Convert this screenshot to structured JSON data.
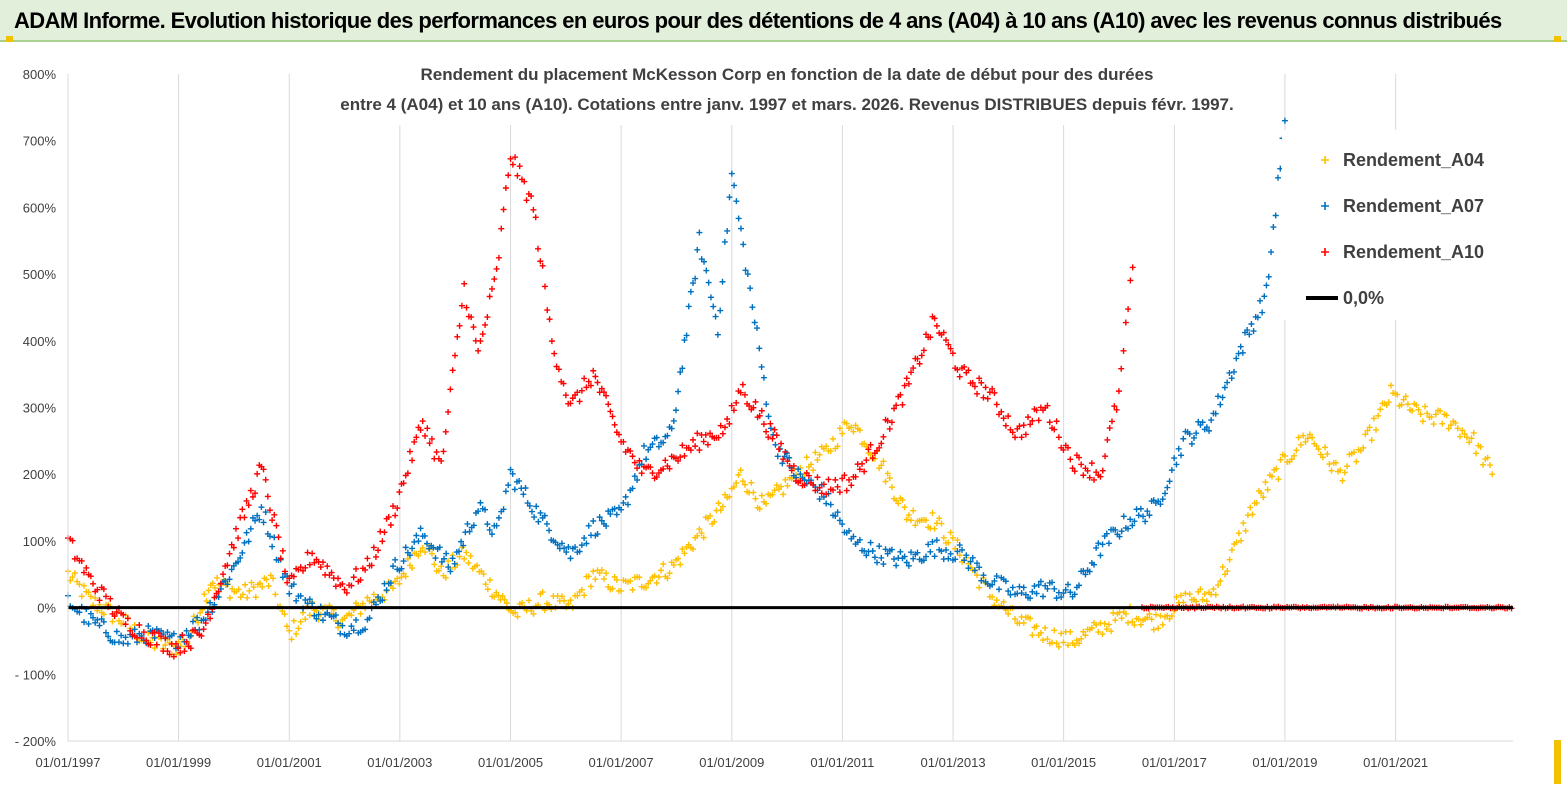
{
  "banner": {
    "title": "ADAM Informe. Evolution historique des performances en euros pour des détentions de 4 ans (A04) à 10 ans (A10) avec les revenus connus distribués"
  },
  "chart_data": {
    "type": "scatter",
    "title_lines": [
      "Rendement du placement McKesson Corp en fonction de la date de début pour des durées",
      "entre 4 (A04) et 10 ans (A10). Cotations entre janv. 1997 et mars. 2026. Revenus DISTRIBUES depuis févr. 1997."
    ],
    "x_axis": {
      "type": "date",
      "range": [
        "1997-01-01",
        "2023-02-15"
      ],
      "tick_labels": [
        "01/01/1997",
        "01/01/1999",
        "01/01/2001",
        "01/01/2003",
        "01/01/2005",
        "01/01/2007",
        "01/01/2009",
        "01/01/2011",
        "01/01/2013",
        "01/01/2015",
        "01/01/2017",
        "01/01/2019",
        "01/01/2021"
      ]
    },
    "y_axis": {
      "range": [
        -200,
        800
      ],
      "tick_values": [
        -200,
        -100,
        0,
        100,
        200,
        300,
        400,
        500,
        600,
        700,
        800
      ],
      "tick_labels": [
        "- 200%",
        "- 100%",
        "0%",
        "100%",
        "200%",
        "300%",
        "400%",
        "500%",
        "600%",
        "700%",
        "800%"
      ]
    },
    "grid": {
      "vertical": true,
      "horizontal": false
    },
    "legend_position": "top-right",
    "legend": [
      {
        "label": "Rendement_A04",
        "marker": "+",
        "color": "#ffc000"
      },
      {
        "label": "Rendement_A07",
        "marker": "+",
        "color": "#0070c0"
      },
      {
        "label": "Rendement_A10",
        "marker": "+",
        "color": "#ff0000"
      },
      {
        "label": "0,0%",
        "marker": "line",
        "color": "#000000"
      }
    ],
    "series": [
      {
        "name": "Rendement_A04",
        "color": "#ffc000",
        "points": [
          [
            "1997-01-01",
            50
          ],
          [
            "1997-06-01",
            10
          ],
          [
            "1998-01-01",
            -20
          ],
          [
            "1998-06-01",
            -50
          ],
          [
            "1998-12-01",
            -60
          ],
          [
            "1999-03-01",
            -50
          ],
          [
            "1999-08-01",
            40
          ],
          [
            "2000-03-01",
            20
          ],
          [
            "2000-09-01",
            40
          ],
          [
            "2001-01-01",
            -40
          ],
          [
            "2001-06-01",
            0
          ],
          [
            "2002-01-01",
            -20
          ],
          [
            "2002-06-01",
            10
          ],
          [
            "2002-12-01",
            30
          ],
          [
            "2003-06-01",
            100
          ],
          [
            "2003-10-01",
            50
          ],
          [
            "2004-03-01",
            80
          ],
          [
            "2004-09-01",
            30
          ],
          [
            "2005-02-01",
            -10
          ],
          [
            "2005-08-01",
            10
          ],
          [
            "2006-02-01",
            0
          ],
          [
            "2006-07-01",
            50
          ],
          [
            "2007-01-01",
            30
          ],
          [
            "2007-06-01",
            40
          ],
          [
            "2007-12-01",
            60
          ],
          [
            "2008-06-01",
            110
          ],
          [
            "2008-12-01",
            160
          ],
          [
            "2009-03-01",
            200
          ],
          [
            "2009-08-01",
            150
          ],
          [
            "2010-03-01",
            200
          ],
          [
            "2010-09-01",
            230
          ],
          [
            "2011-03-01",
            280
          ],
          [
            "2011-09-01",
            220
          ],
          [
            "2012-03-01",
            140
          ],
          [
            "2012-09-01",
            130
          ],
          [
            "2013-03-01",
            80
          ],
          [
            "2013-09-01",
            20
          ],
          [
            "2014-03-01",
            -20
          ],
          [
            "2014-09-01",
            -40
          ],
          [
            "2015-03-01",
            -50
          ],
          [
            "2015-09-01",
            -30
          ],
          [
            "2016-03-01",
            -10
          ],
          [
            "2016-09-01",
            -20
          ],
          [
            "2017-03-01",
            10
          ],
          [
            "2017-09-01",
            20
          ],
          [
            "2018-01-01",
            70
          ],
          [
            "2018-06-01",
            150
          ],
          [
            "2019-01-01",
            220
          ],
          [
            "2019-06-01",
            260
          ],
          [
            "2020-01-01",
            200
          ],
          [
            "2020-06-01",
            240
          ],
          [
            "2020-12-01",
            320
          ],
          [
            "2021-06-01",
            290
          ],
          [
            "2022-01-01",
            280
          ],
          [
            "2022-06-01",
            250
          ],
          [
            "2022-10-01",
            200
          ]
        ]
      },
      {
        "name": "Rendement_A07",
        "color": "#0070c0",
        "points": [
          [
            "1997-01-01",
            10
          ],
          [
            "1997-06-01",
            -20
          ],
          [
            "1998-01-01",
            -50
          ],
          [
            "1998-06-01",
            -40
          ],
          [
            "1998-12-01",
            -50
          ],
          [
            "1999-06-01",
            -20
          ],
          [
            "2000-01-01",
            60
          ],
          [
            "2000-07-01",
            150
          ],
          [
            "2001-01-01",
            30
          ],
          [
            "2001-06-01",
            0
          ],
          [
            "2002-01-01",
            -30
          ],
          [
            "2002-06-01",
            -20
          ],
          [
            "2002-12-01",
            60
          ],
          [
            "2003-06-01",
            110
          ],
          [
            "2003-12-01",
            60
          ],
          [
            "2004-06-01",
            150
          ],
          [
            "2004-10-01",
            110
          ],
          [
            "2005-01-01",
            200
          ],
          [
            "2005-08-01",
            130
          ],
          [
            "2006-02-01",
            80
          ],
          [
            "2006-07-01",
            120
          ],
          [
            "2007-01-01",
            140
          ],
          [
            "2007-06-01",
            230
          ],
          [
            "2007-12-01",
            260
          ],
          [
            "2008-06-01",
            550
          ],
          [
            "2008-10-01",
            420
          ],
          [
            "2009-01-01",
            650
          ],
          [
            "2009-06-01",
            430
          ],
          [
            "2009-10-01",
            250
          ],
          [
            "2010-03-01",
            200
          ],
          [
            "2010-09-01",
            170
          ],
          [
            "2011-03-01",
            100
          ],
          [
            "2011-09-01",
            80
          ],
          [
            "2012-03-01",
            70
          ],
          [
            "2012-09-01",
            90
          ],
          [
            "2013-03-01",
            80
          ],
          [
            "2013-09-01",
            40
          ],
          [
            "2014-03-01",
            20
          ],
          [
            "2014-09-01",
            30
          ],
          [
            "2015-03-01",
            20
          ],
          [
            "2015-09-01",
            90
          ],
          [
            "2016-03-01",
            130
          ],
          [
            "2016-09-01",
            150
          ],
          [
            "2017-03-01",
            250
          ],
          [
            "2017-09-01",
            280
          ],
          [
            "2018-03-01",
            380
          ],
          [
            "2018-09-01",
            470
          ],
          [
            "2019-01-01",
            730
          ]
        ]
      },
      {
        "name": "Rendement_A10",
        "color": "#ff0000",
        "points": [
          [
            "1997-01-01",
            100
          ],
          [
            "1997-06-01",
            40
          ],
          [
            "1998-01-01",
            -20
          ],
          [
            "1998-06-01",
            -40
          ],
          [
            "1998-12-01",
            -60
          ],
          [
            "1999-06-01",
            -40
          ],
          [
            "2000-01-01",
            100
          ],
          [
            "2000-07-01",
            210
          ],
          [
            "2001-01-01",
            30
          ],
          [
            "2001-06-01",
            80
          ],
          [
            "2002-01-01",
            30
          ],
          [
            "2002-06-01",
            60
          ],
          [
            "2002-12-01",
            150
          ],
          [
            "2003-06-01",
            280
          ],
          [
            "2003-10-01",
            210
          ],
          [
            "2004-03-01",
            480
          ],
          [
            "2004-06-01",
            380
          ],
          [
            "2004-10-01",
            500
          ],
          [
            "2005-01-01",
            680
          ],
          [
            "2005-06-01",
            600
          ],
          [
            "2005-10-01",
            400
          ],
          [
            "2006-02-01",
            300
          ],
          [
            "2006-07-01",
            350
          ],
          [
            "2007-01-01",
            250
          ],
          [
            "2007-06-01",
            200
          ],
          [
            "2007-12-01",
            220
          ],
          [
            "2008-06-01",
            250
          ],
          [
            "2008-12-01",
            270
          ],
          [
            "2009-03-01",
            330
          ],
          [
            "2009-08-01",
            280
          ],
          [
            "2010-03-01",
            200
          ],
          [
            "2010-09-01",
            180
          ],
          [
            "2011-03-01",
            190
          ],
          [
            "2011-09-01",
            250
          ],
          [
            "2012-03-01",
            330
          ],
          [
            "2012-09-01",
            430
          ],
          [
            "2013-03-01",
            350
          ],
          [
            "2013-09-01",
            320
          ],
          [
            "2014-03-01",
            260
          ],
          [
            "2014-09-01",
            300
          ],
          [
            "2015-03-01",
            220
          ],
          [
            "2015-09-01",
            200
          ],
          [
            "2016-01-01",
            320
          ],
          [
            "2016-04-01",
            510
          ]
        ]
      }
    ],
    "zero_segment_after": "2016-06-01",
    "reference_line": {
      "label": "0,0%",
      "y": 0,
      "color": "#000000"
    }
  }
}
